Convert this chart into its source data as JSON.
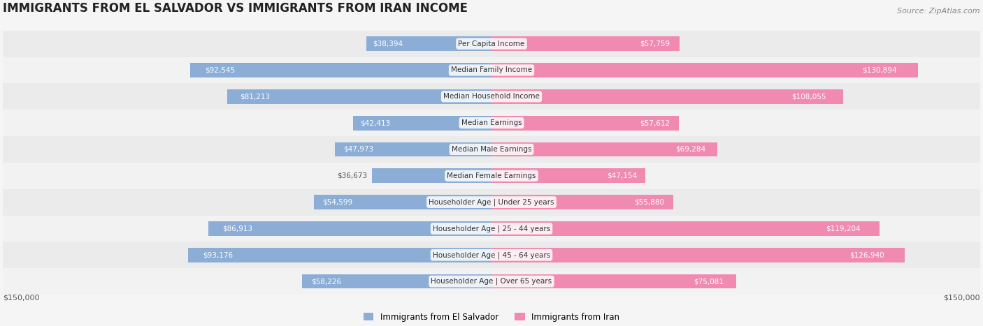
{
  "title": "IMMIGRANTS FROM EL SALVADOR VS IMMIGRANTS FROM IRAN INCOME",
  "source": "Source: ZipAtlas.com",
  "categories": [
    "Per Capita Income",
    "Median Family Income",
    "Median Household Income",
    "Median Earnings",
    "Median Male Earnings",
    "Median Female Earnings",
    "Householder Age | Under 25 years",
    "Householder Age | 25 - 44 years",
    "Householder Age | 45 - 64 years",
    "Householder Age | Over 65 years"
  ],
  "el_salvador_values": [
    38394,
    92545,
    81213,
    42413,
    47973,
    36673,
    54599,
    86913,
    93176,
    58226
  ],
  "iran_values": [
    57759,
    130894,
    108055,
    57612,
    69284,
    47154,
    55880,
    119204,
    126940,
    75081
  ],
  "el_salvador_labels": [
    "$38,394",
    "$92,545",
    "$81,213",
    "$42,413",
    "$47,973",
    "$36,673",
    "$54,599",
    "$86,913",
    "$93,176",
    "$58,226"
  ],
  "iran_labels": [
    "$57,759",
    "$130,894",
    "$108,055",
    "$57,612",
    "$69,284",
    "$47,154",
    "$55,880",
    "$119,204",
    "$126,940",
    "$75,081"
  ],
  "el_salvador_color": "#8badd6",
  "iran_color": "#f08ab0",
  "el_salvador_label_color_inside": "#ffffff",
  "label_color_outside": "#555555",
  "max_value": 150000,
  "legend_el_salvador": "Immigrants from El Salvador",
  "legend_iran": "Immigrants from Iran",
  "background_color": "#f5f5f5",
  "row_background_color": "#e8e8e8",
  "row_background_light": "#f0f0f0"
}
